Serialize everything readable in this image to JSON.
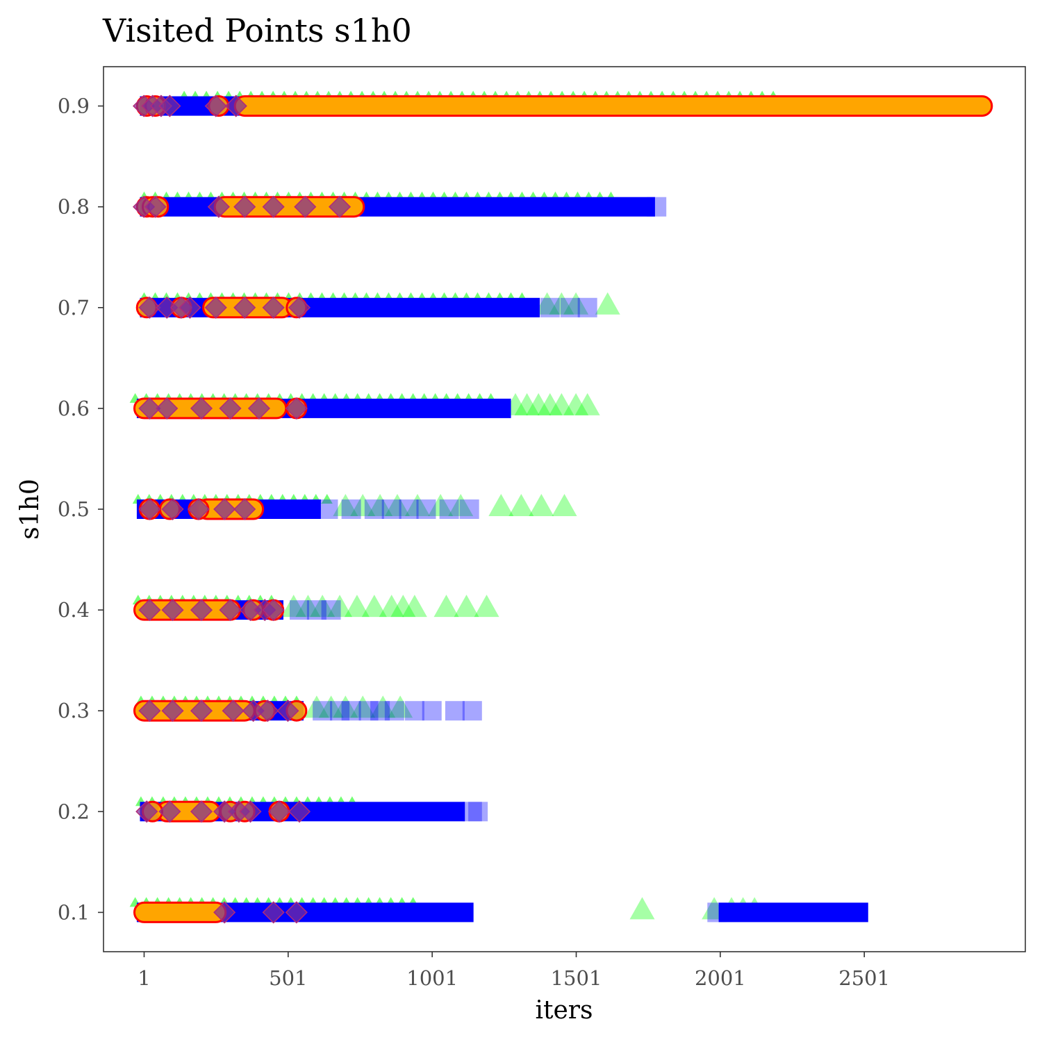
{
  "chart_data": {
    "type": "scatter",
    "title": "Visited Points s1h0",
    "xlabel": "iters",
    "ylabel": "s1h0",
    "xlim": [
      -140,
      3060
    ],
    "ylim": [
      0.061,
      0.939
    ],
    "x_ticks": [
      1,
      501,
      1001,
      1501,
      2001,
      2501
    ],
    "x_tick_labels": [
      "1",
      "501",
      "1001",
      "1501",
      "2001",
      "2501"
    ],
    "y_ticks": [
      0.1,
      0.2,
      0.3,
      0.4,
      0.5,
      0.6,
      0.7,
      0.8,
      0.9
    ],
    "y_tick_labels": [
      "0.1",
      "0.2",
      "0.3",
      "0.4",
      "0.5",
      "0.6",
      "0.7",
      "0.8",
      "0.9"
    ],
    "grid": false,
    "legend": "none",
    "colors": {
      "green_triangle": "#00ff00",
      "blue_square": "#0000ff",
      "red_circle_edge": "#ff0000",
      "orange_circle_fill": "#ffa500",
      "purple_diamond": "#7a2d9a"
    },
    "series": [
      {
        "marker": "triangle",
        "color": "#00ff00",
        "rows": [
          {
            "y": 0.9,
            "dense": [
              [
                140,
                2221
              ]
            ],
            "sparse": []
          },
          {
            "y": 0.8,
            "dense": [
              [
                1,
                1650
              ]
            ],
            "sparse": []
          },
          {
            "y": 0.7,
            "dense": [
              [
                1,
                1350
              ]
            ],
            "sparse": [
              1400,
              1450,
              1500,
              1610
            ]
          },
          {
            "y": 0.6,
            "dense": [
              [
                -30,
                1230
              ]
            ],
            "sparse": [
              1290,
              1330,
              1370,
              1410,
              1450,
              1500,
              1540
            ]
          },
          {
            "y": 0.5,
            "dense": [
              [
                -20,
                650
              ]
            ],
            "sparse": [
              700,
              760,
              820,
              880,
              950,
              1030,
              1100,
              1240,
              1310,
              1380,
              1460
            ]
          },
          {
            "y": 0.4,
            "dense": [
              [
                -20,
                480
              ]
            ],
            "sparse": [
              520,
              570,
              620,
              680,
              740,
              800,
              860,
              900,
              940,
              1050,
              1120,
              1190
            ]
          },
          {
            "y": 0.3,
            "dense": [
              [
                -10,
                560
              ]
            ],
            "sparse": [
              600,
              650,
              700,
              760,
              830,
              890
            ]
          },
          {
            "y": 0.2,
            "dense": [
              [
                -10,
                760
              ]
            ],
            "sparse": []
          },
          {
            "y": 0.1,
            "dense": [
              [
                -30,
                960
              ]
            ],
            "sparse": [
              1730,
              1980,
              2040,
              2080,
              2120
            ]
          }
        ]
      },
      {
        "marker": "square",
        "color": "#0000ff",
        "rows": [
          {
            "y": 0.9,
            "dense": [
              [
                1,
                620
              ]
            ],
            "sparse": []
          },
          {
            "y": 0.8,
            "dense": [
              [
                1,
                1760
              ]
            ],
            "sparse": [
              1780
            ]
          },
          {
            "y": 0.7,
            "dense": [
              [
                1,
                1360
              ]
            ],
            "sparse": [
              1410,
              1480,
              1540
            ]
          },
          {
            "y": 0.6,
            "dense": [
              [
                -10,
                1260
              ]
            ],
            "sparse": []
          },
          {
            "y": 0.5,
            "dense": [
              [
                -10,
                600
              ]
            ],
            "sparse": [
              640,
              720,
              800,
              860,
              920,
              980,
              1060,
              1130
            ]
          },
          {
            "y": 0.4,
            "dense": [
              [
                1,
                470
              ]
            ],
            "sparse": [
              540,
              600,
              650
            ]
          },
          {
            "y": 0.3,
            "dense": [
              [
                1,
                540
              ]
            ],
            "sparse": [
              620,
              680,
              720,
              780,
              820,
              870,
              940,
              1000,
              1080,
              1140
            ]
          },
          {
            "y": 0.2,
            "dense": [
              [
                1,
                1100
              ]
            ],
            "sparse": [
              1140,
              1160
            ]
          },
          {
            "y": 0.1,
            "dense": [
              [
                -10,
                1130
              ],
              [
                2010,
                2500
              ]
            ],
            "sparse": [
              1990
            ]
          }
        ]
      },
      {
        "marker": "circle",
        "color": "#ffa500",
        "rows": [
          {
            "y": 0.9,
            "dense": [
              [
                350,
                2910
              ]
            ],
            "sparse": [
              10,
              40,
              260
            ]
          },
          {
            "y": 0.8,
            "dense": [
              [
                280,
                730
              ]
            ],
            "sparse": [
              10,
              30,
              50
            ]
          },
          {
            "y": 0.7,
            "dense": [
              [
                240,
                480
              ]
            ],
            "sparse": [
              10,
              130,
              530
            ]
          },
          {
            "y": 0.6,
            "dense": [
              [
                1,
                460
              ]
            ],
            "sparse": [
              530
            ]
          },
          {
            "y": 0.5,
            "dense": [
              [
                220,
                380
              ]
            ],
            "sparse": [
              20,
              90,
              190
            ]
          },
          {
            "y": 0.4,
            "dense": [
              [
                1,
                300
              ]
            ],
            "sparse": [
              380,
              450
            ]
          },
          {
            "y": 0.3,
            "dense": [
              [
                1,
                350
              ]
            ],
            "sparse": [
              420,
              530
            ]
          },
          {
            "y": 0.2,
            "dense": [
              [
                80,
                230
              ]
            ],
            "sparse": [
              30,
              300,
              350,
              470
            ]
          },
          {
            "y": 0.1,
            "dense": [
              [
                1,
                250
              ]
            ],
            "sparse": []
          }
        ]
      },
      {
        "marker": "diamond",
        "color": "#7a2d9a",
        "rows": [
          {
            "y": 0.9,
            "dense": [],
            "sparse": [
              0,
              30,
              60,
              90,
              250,
              320
            ]
          },
          {
            "y": 0.8,
            "dense": [],
            "sparse": [
              0,
              40,
              260,
              350,
              450,
              560,
              680
            ]
          },
          {
            "y": 0.7,
            "dense": [],
            "sparse": [
              20,
              80,
              130,
              160,
              250,
              350,
              450,
              540
            ]
          },
          {
            "y": 0.6,
            "dense": [],
            "sparse": [
              20,
              80,
              200,
              300,
              400,
              530
            ]
          },
          {
            "y": 0.5,
            "dense": [],
            "sparse": [
              20,
              100,
              190,
              280,
              350
            ]
          },
          {
            "y": 0.4,
            "dense": [],
            "sparse": [
              20,
              100,
              200,
              300,
              370,
              420,
              450
            ]
          },
          {
            "y": 0.3,
            "dense": [],
            "sparse": [
              20,
              100,
              200,
              310,
              380,
              430,
              500
            ]
          },
          {
            "y": 0.2,
            "dense": [],
            "sparse": [
              10,
              90,
              200,
              280,
              330,
              370,
              470,
              540
            ]
          },
          {
            "y": 0.1,
            "dense": [],
            "sparse": [
              280,
              450,
              530
            ]
          }
        ]
      }
    ]
  }
}
